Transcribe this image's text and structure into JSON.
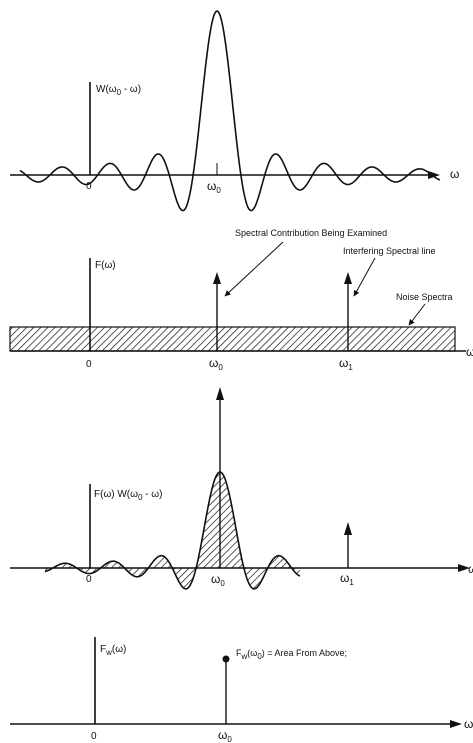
{
  "panel1": {
    "ylabel_main": "W(ω",
    "ylabel_sub": "0",
    "ylabel_tail": " - ω)",
    "x_zero": "0",
    "x_w0_main": "ω",
    "x_w0_sub": "0",
    "axis_symbol": "ω"
  },
  "panel2": {
    "ylabel": "F(ω)",
    "x_zero": "0",
    "x_w0_main": "ω",
    "x_w0_sub": "0",
    "x_w1_main": "ω",
    "x_w1_sub": "1",
    "axis_symbol": "ω",
    "annotation_examined": "Spectral Contribution Being Examined",
    "annotation_interfering": "Interfering Spectral line",
    "annotation_noise": "Noise Spectra"
  },
  "panel3": {
    "ylabel_main": "F(ω) W(ω",
    "ylabel_sub": "0",
    "ylabel_tail": " - ω)",
    "x_zero": "0",
    "x_w0_main": "ω",
    "x_w0_sub": "0",
    "x_w1_main": "ω",
    "x_w1_sub": "1",
    "axis_symbol": "ω"
  },
  "panel4": {
    "ylabel_main": "F",
    "ylabel_sub": "w",
    "ylabel_tail": "(ω)",
    "point_label_main": "F",
    "point_label_sub": "w",
    "point_label_mid": "(ω",
    "point_label_sub2": "0",
    "point_label_tail": ") = Area From Above;",
    "x_zero": "0",
    "x_w0_main": "ω",
    "x_w0_sub": "0",
    "axis_symbol": "ω"
  },
  "colors": {
    "ink": "#111111",
    "paper": "#ffffff"
  }
}
